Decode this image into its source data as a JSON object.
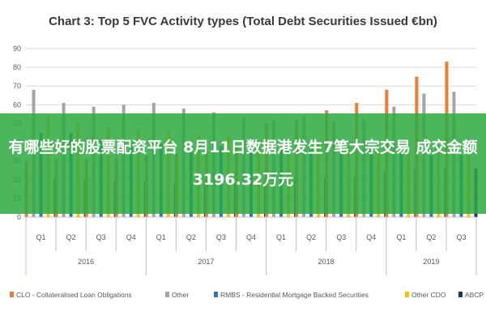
{
  "overlay_text": "有哪些好的股票配资平台 8月11日数据港发生7笔大宗交易 成交金额3196.32万元",
  "chart_data": {
    "type": "bar",
    "title": "Chart 3: Top 5 FVC Activity types (Total Debt Securities Issued €bn)",
    "xlabel": "",
    "ylabel": "",
    "ylim": [
      0,
      90
    ],
    "yticks": [
      0,
      10,
      20,
      30,
      40,
      50,
      60,
      70,
      80,
      90
    ],
    "grid": true,
    "legend_position": "bottom",
    "categories": [
      "Q1",
      "Q2",
      "Q3",
      "Q4",
      "Q1",
      "Q2",
      "Q3",
      "Q4",
      "Q1",
      "Q2",
      "Q3",
      "Q4",
      "Q1",
      "Q2",
      "Q3"
    ],
    "groups": [
      {
        "label": "2016",
        "count": 4
      },
      {
        "label": "2017",
        "count": 4
      },
      {
        "label": "2018",
        "count": 4
      },
      {
        "label": "2019",
        "count": 3
      }
    ],
    "series": [
      {
        "name": "CLO - Collateralised Loan Obligations",
        "color": "#ed7d31",
        "values": [
          30,
          31,
          31,
          32,
          33,
          34,
          35,
          38,
          50,
          52,
          57,
          61,
          68,
          75,
          83
        ]
      },
      {
        "name": "Other",
        "color": "#a5a5a5",
        "values": [
          68,
          61,
          59,
          60,
          61,
          58,
          56,
          53,
          52,
          54,
          51,
          52,
          59,
          66,
          67
        ]
      },
      {
        "name": "RMBS - Residential Mortgage Backed Securities",
        "color": "#2e75b6",
        "values": [
          45,
          45,
          41,
          40,
          39,
          38,
          38,
          38,
          37,
          36,
          36,
          37,
          34,
          33,
          33
        ]
      },
      {
        "name": "Other CDO",
        "color": "#ffc000",
        "values": [
          54,
          50,
          48,
          47,
          46,
          44,
          43,
          41,
          40,
          39,
          38,
          36,
          35,
          34,
          33
        ]
      },
      {
        "name": "ABCP",
        "color": "#203864",
        "values": [
          21,
          20,
          19,
          19,
          18,
          18,
          18,
          19,
          20,
          21,
          22,
          24,
          25,
          26,
          26
        ]
      }
    ]
  }
}
